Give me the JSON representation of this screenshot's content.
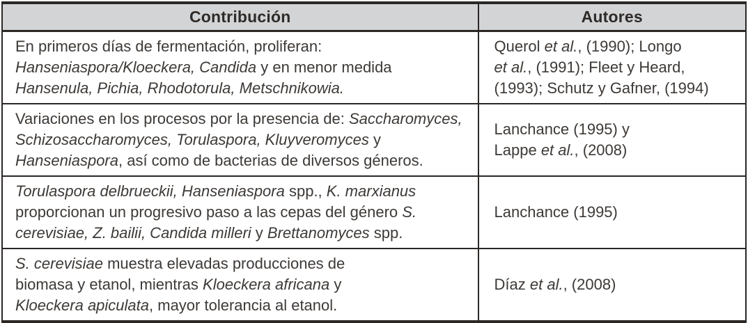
{
  "colors": {
    "header_bg": "#d3d4d6",
    "border_color": "#2a2725",
    "text_color": "#3d3936",
    "page_bg": "#ffffff"
  },
  "table": {
    "header": {
      "contribution": "Contribución",
      "authors": "Autores"
    },
    "rows": [
      {
        "contribution": [
          {
            "text": "En primeros días de fermentación, proliferan:\n",
            "italic": false
          },
          {
            "text": "Hanseniaspora/Kloeckera, Candida",
            "italic": true
          },
          {
            "text": " y en menor medida\n",
            "italic": false
          },
          {
            "text": "Hansenula, Pichia, Rhodotorula, Metschnikowia.",
            "italic": true
          }
        ],
        "authors": [
          {
            "text": "Querol ",
            "italic": false
          },
          {
            "text": "et al.",
            "italic": true
          },
          {
            "text": ", (1990); Longo\n",
            "italic": false
          },
          {
            "text": "et al.",
            "italic": true
          },
          {
            "text": ", (1991); Fleet y Heard,\n(1993); Schutz y Gafner, (1994)",
            "italic": false
          }
        ]
      },
      {
        "contribution": [
          {
            "text": "Variaciones en los procesos por la presencia de: ",
            "italic": false
          },
          {
            "text": "Saccharomyces,\nSchizosaccharomyces, Torulaspora, Kluyveromyces",
            "italic": true
          },
          {
            "text": " y\n",
            "italic": false
          },
          {
            "text": "Hanseniaspora",
            "italic": true
          },
          {
            "text": ", así como de bacterias de diversos géneros.",
            "italic": false
          }
        ],
        "authors": [
          {
            "text": "Lanchance (1995) y\nLappe ",
            "italic": false
          },
          {
            "text": "et al.",
            "italic": true
          },
          {
            "text": ", (2008)",
            "italic": false
          }
        ]
      },
      {
        "contribution": [
          {
            "text": "Torulaspora delbrueckii, Hanseniaspora",
            "italic": true
          },
          {
            "text": " spp., ",
            "italic": false
          },
          {
            "text": "K. marxianus",
            "italic": true
          },
          {
            "text": "\nproporcionan un progresivo paso a las cepas del género ",
            "italic": false
          },
          {
            "text": "S.\ncerevisiae, Z. bailii, Candida milleri",
            "italic": true
          },
          {
            "text": " y ",
            "italic": false
          },
          {
            "text": "Brettanomyces",
            "italic": true
          },
          {
            "text": " spp.",
            "italic": false
          }
        ],
        "authors": [
          {
            "text": "Lanchance (1995)",
            "italic": false
          }
        ]
      },
      {
        "contribution": [
          {
            "text": "S. cerevisiae",
            "italic": true
          },
          {
            "text": " muestra elevadas producciones de\nbiomasa y etanol, mientras ",
            "italic": false
          },
          {
            "text": "Kloeckera africana",
            "italic": true
          },
          {
            "text": " y\n",
            "italic": false
          },
          {
            "text": "Kloeckera apiculata",
            "italic": true
          },
          {
            "text": ", mayor tolerancia al etanol.",
            "italic": false
          }
        ],
        "authors": [
          {
            "text": "Díaz ",
            "italic": false
          },
          {
            "text": "et al.",
            "italic": true
          },
          {
            "text": ", (2008)",
            "italic": false
          }
        ]
      }
    ]
  }
}
